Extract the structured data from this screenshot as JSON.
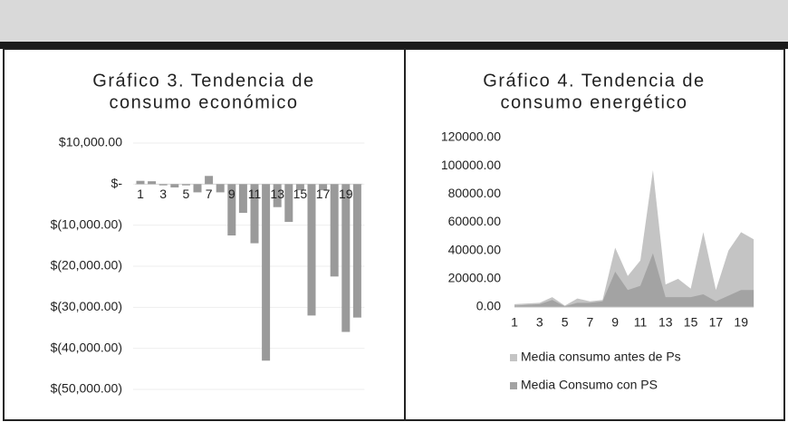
{
  "chart_data": [
    {
      "type": "bar",
      "title": [
        "Gráfico 3. Tendencia de",
        "consumo económico"
      ],
      "categories": [
        "1",
        null,
        "3",
        null,
        "5",
        null,
        "7",
        null,
        "9",
        null,
        "11",
        null,
        "13",
        null,
        "15",
        null,
        "17",
        null,
        "19",
        null
      ],
      "values": [
        800,
        700,
        -300,
        -800,
        -300,
        -2000,
        2000,
        -2000,
        -12500,
        -7000,
        -14400,
        -43000,
        -5600,
        -9200,
        -1500,
        -32000,
        -1500,
        -22500,
        -36000,
        -32500
      ],
      "color": "#9a9a9a",
      "ylim": [
        -50000,
        10000
      ],
      "yticks": [
        {
          "value": 10000,
          "label": "$10,000.00"
        },
        {
          "value": 0,
          "label": "$-"
        },
        {
          "value": -10000,
          "label": "$(10,000.00)"
        },
        {
          "value": -20000,
          "label": "$(20,000.00)"
        },
        {
          "value": -30000,
          "label": "$(30,000.00)"
        },
        {
          "value": -40000,
          "label": "$(40,000.00)"
        },
        {
          "value": -50000,
          "label": "$(50,000.00)"
        }
      ],
      "grid": true
    },
    {
      "type": "area",
      "title": [
        "Gráfico 4. Tendencia de",
        "consumo energético"
      ],
      "categories": [
        "1",
        null,
        "3",
        null,
        "5",
        null,
        "7",
        null,
        "9",
        null,
        "11",
        null,
        "13",
        null,
        "15",
        null,
        "17",
        null,
        "19",
        null
      ],
      "series": [
        {
          "name": "Media consumo antes de Ps",
          "color": "#c4c4c4",
          "values": [
            2000,
            2500,
            3000,
            7000,
            1000,
            6000,
            4000,
            5000,
            42000,
            22000,
            33000,
            97000,
            16000,
            20000,
            13000,
            53000,
            12000,
            40000,
            53000,
            48000
          ]
        },
        {
          "name": "Media Consumo con PS",
          "color": "#a3a3a3",
          "values": [
            1000,
            1500,
            2000,
            5000,
            500,
            3000,
            3000,
            4000,
            25000,
            12000,
            15000,
            38000,
            7000,
            7000,
            7000,
            9000,
            4000,
            8000,
            12000,
            12000
          ]
        }
      ],
      "ylim": [
        0,
        120000
      ],
      "yticks": [
        {
          "value": 0,
          "label": "0.00"
        },
        {
          "value": 20000,
          "label": "20000.00"
        },
        {
          "value": 40000,
          "label": "40000.00"
        },
        {
          "value": 60000,
          "label": "60000.00"
        },
        {
          "value": 80000,
          "label": "80000.00"
        },
        {
          "value": 100000,
          "label": "100000.00"
        },
        {
          "value": 120000,
          "label": "120000.00"
        }
      ],
      "grid": false,
      "legend": "bottom"
    }
  ]
}
